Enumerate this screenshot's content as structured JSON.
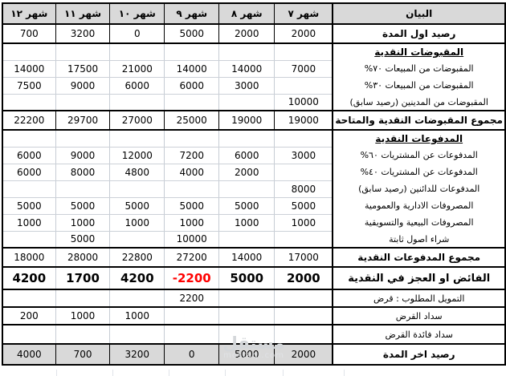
{
  "table": {
    "label_header": "البيان",
    "months": [
      "شهر ٧",
      "شهر ٨",
      "شهر ٩",
      "شهر ١٠",
      "شهر ١١",
      "شهر ١٢"
    ],
    "rows": [
      {
        "label": "رصيد اول المدة",
        "type": "strong",
        "values": [
          "2000",
          "2000",
          "5000",
          "0",
          "3200",
          "700"
        ]
      },
      {
        "label": "المقبوضات النقدية",
        "type": "section",
        "values": [
          "",
          "",
          "",
          "",
          "",
          ""
        ]
      },
      {
        "label": "المقبوضات من المبيعات ٧٠%",
        "type": "item",
        "values": [
          "7000",
          "14000",
          "14000",
          "21000",
          "17500",
          "14000"
        ]
      },
      {
        "label": "المقبوضات من المبيعات ٣٠%",
        "type": "item",
        "values": [
          "",
          "3000",
          "6000",
          "6000",
          "9000",
          "7500"
        ]
      },
      {
        "label": "المقبوضات من المدينين (رصيد سابق)",
        "type": "item",
        "values": [
          "10000",
          "",
          "",
          "",
          "",
          ""
        ]
      },
      {
        "label": "مجموع المقبوضات النقدية والمتاحة",
        "type": "total-dark",
        "values": [
          "19000",
          "19000",
          "25000",
          "27000",
          "29700",
          "22200"
        ]
      },
      {
        "label": "المدفوعات النقدية",
        "type": "section",
        "values": [
          "",
          "",
          "",
          "",
          "",
          ""
        ]
      },
      {
        "label": "المدفوعات عن المشتريات ٦٠%",
        "type": "item",
        "values": [
          "3000",
          "6000",
          "7200",
          "12000",
          "9000",
          "6000"
        ]
      },
      {
        "label": "المدفوعات عن المشتريات ٤٠%",
        "type": "item",
        "values": [
          "",
          "2000",
          "4000",
          "4800",
          "8000",
          "6000"
        ]
      },
      {
        "label": "المدفوعات للدائنين (رصيد سابق)",
        "type": "item",
        "values": [
          "8000",
          "",
          "",
          "",
          "",
          ""
        ]
      },
      {
        "label": "المصروفات الادارية والعمومية",
        "type": "item",
        "values": [
          "5000",
          "5000",
          "5000",
          "5000",
          "5000",
          "5000"
        ]
      },
      {
        "label": "المصروفات البيعية والتسويقية",
        "type": "item",
        "values": [
          "1000",
          "1000",
          "1000",
          "1000",
          "1000",
          "1000"
        ]
      },
      {
        "label": "شراء اصول ثابتة",
        "type": "item",
        "values": [
          "",
          "",
          "10000",
          "",
          "5000",
          ""
        ]
      },
      {
        "label": "مجموع المدفوعات النقدية",
        "type": "total",
        "values": [
          "17000",
          "14000",
          "27200",
          "22800",
          "28000",
          "18000"
        ]
      },
      {
        "label": "الفائض او العجز في النقدية",
        "type": "surplus",
        "values": [
          "2000",
          "5000",
          "-2200",
          "4200",
          "1700",
          "4200"
        ]
      },
      {
        "label": "التمويل المطلوب : قرض",
        "type": "boxed",
        "values": [
          "",
          "",
          "2200",
          "",
          "",
          ""
        ]
      },
      {
        "label": "سداد القرض",
        "type": "boxed",
        "values": [
          "",
          "",
          "",
          "1000",
          "1000",
          "200"
        ]
      },
      {
        "label": "سداد فائدة القرض",
        "type": "boxed",
        "values": [
          "",
          "",
          "",
          "",
          "",
          ""
        ]
      },
      {
        "label": "رصيد اخر المدة",
        "type": "final",
        "values": [
          "2000",
          "5000",
          "0",
          "3200",
          "700",
          "4000"
        ]
      }
    ]
  },
  "colors": {
    "header_bg": "#d9d9d9",
    "final_row_bg": "#d9d9d9",
    "gridline": "#c6ccd4",
    "border": "#000000",
    "negative_value": "#ff0000"
  },
  "watermark": {
    "arabic": "مستقل",
    "latin": "mostaql.com"
  }
}
